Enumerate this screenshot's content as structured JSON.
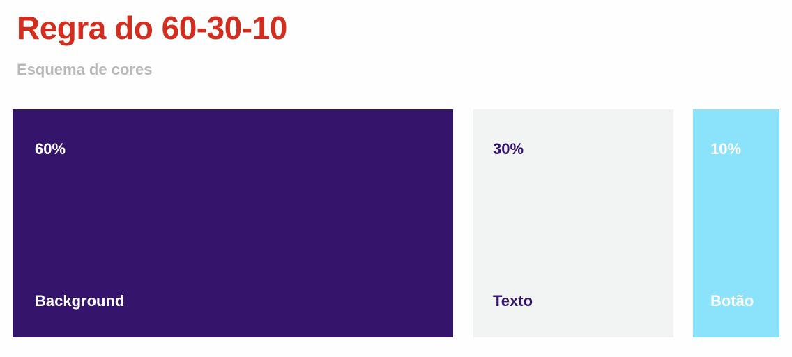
{
  "header": {
    "title": "Regra do 60-30-10",
    "subtitle": "Esquema de cores"
  },
  "colors": {
    "title": "#d22d1e",
    "subtitle": "#b9b9b9"
  },
  "swatches": [
    {
      "percent": "60%",
      "role": "Background",
      "fill": "#35156b",
      "text_color": "#ffffff"
    },
    {
      "percent": "30%",
      "role": "Texto",
      "fill": "#f2f4f4",
      "text_color": "#35156b"
    },
    {
      "percent": "10%",
      "role": "Botão",
      "fill": "#8ae3fb",
      "text_color": "#ffffff"
    }
  ]
}
